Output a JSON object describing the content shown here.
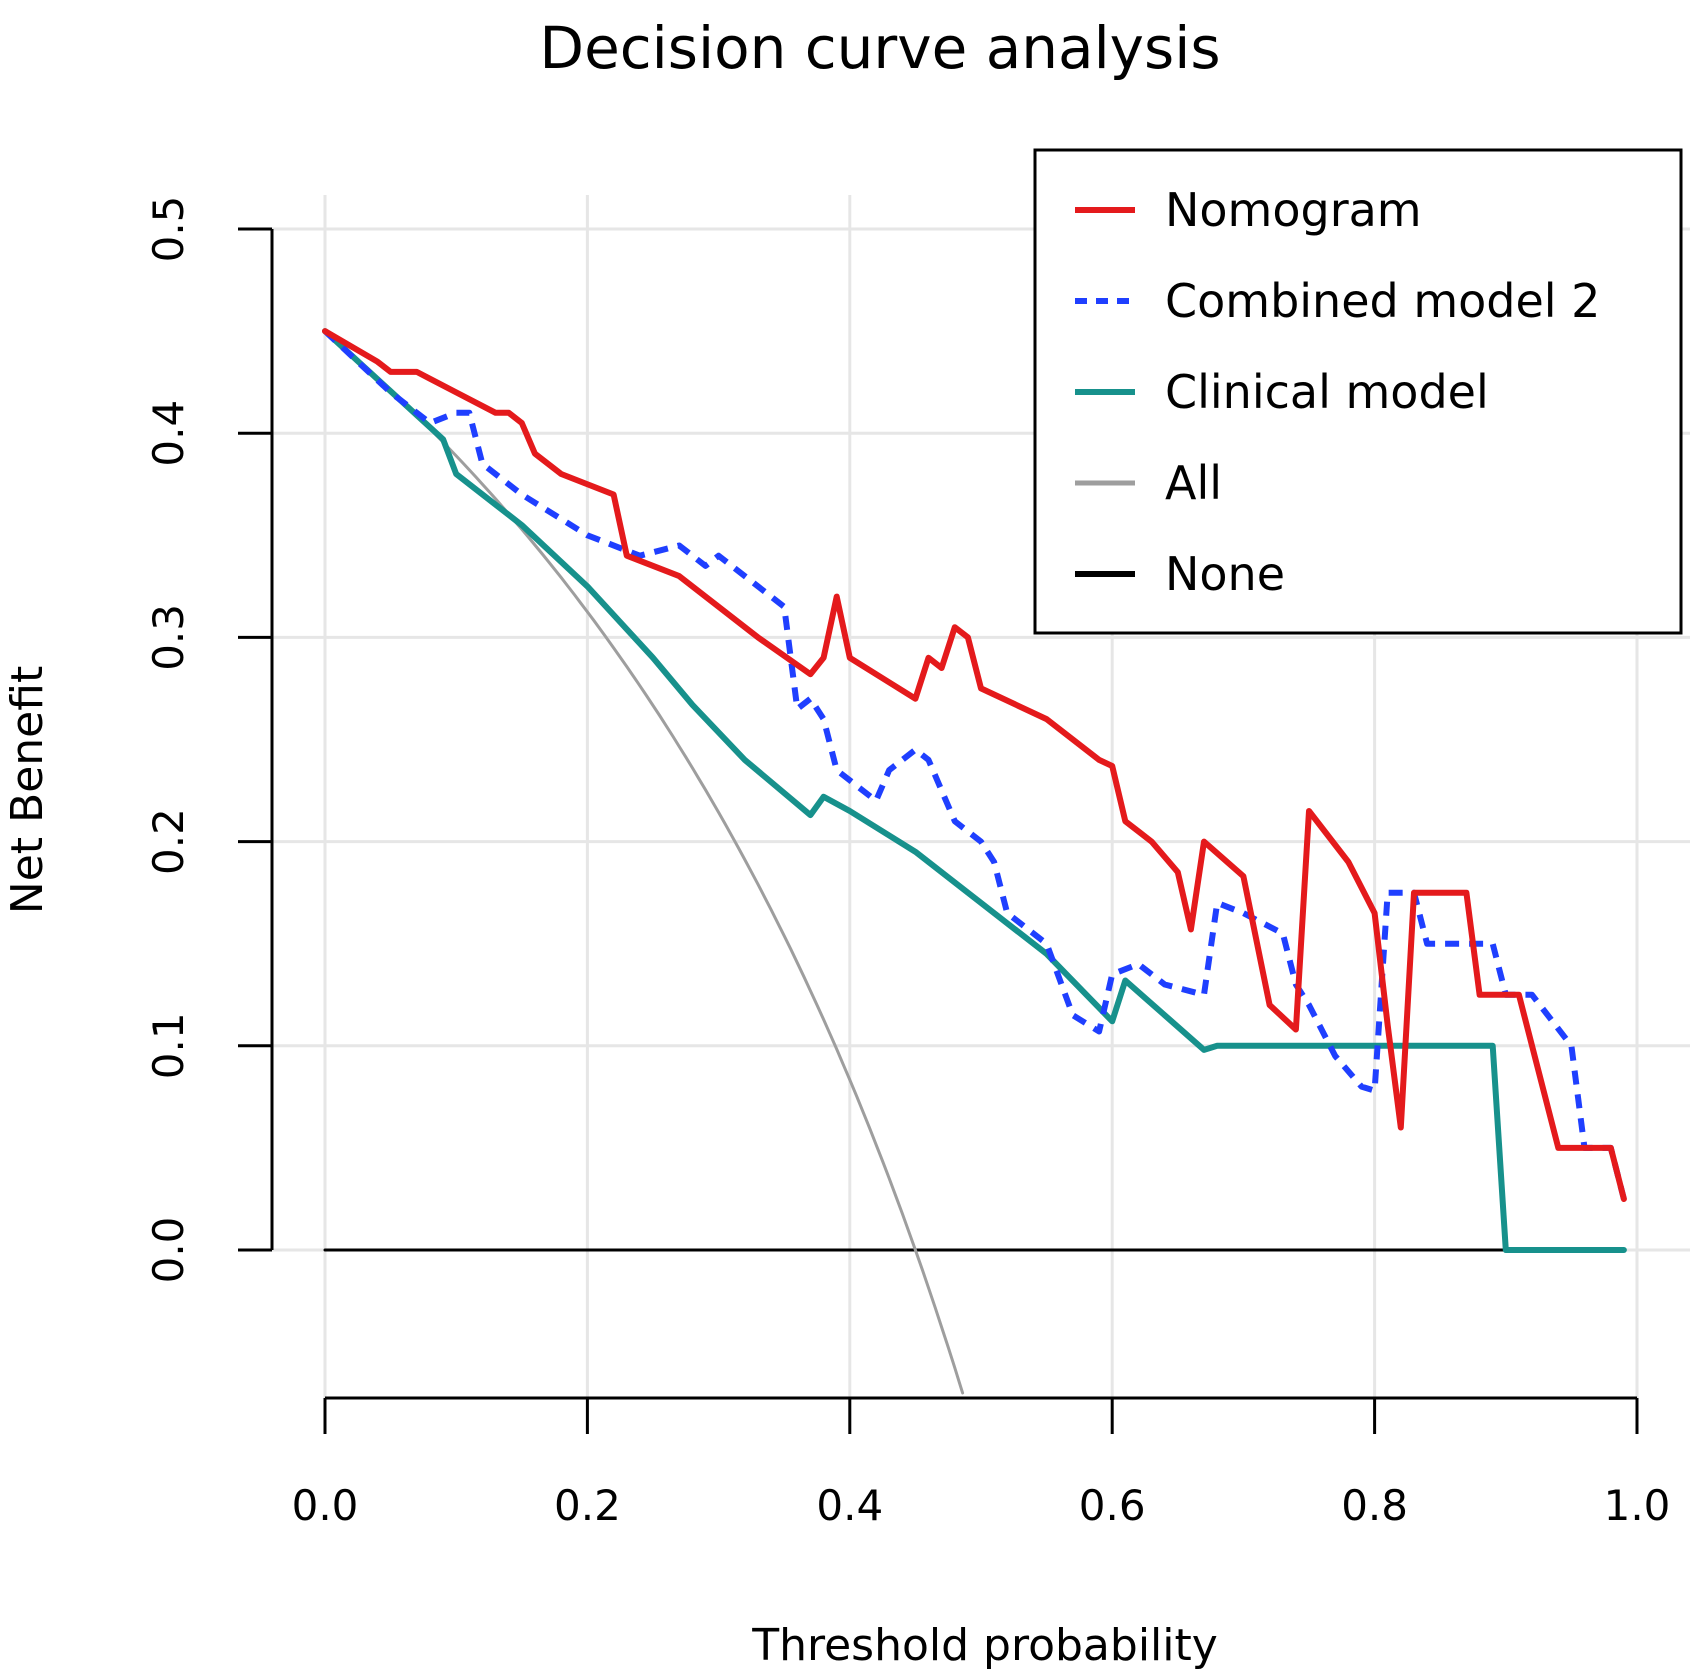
{
  "chart_data": {
    "type": "line",
    "title": "Decision curve analysis",
    "xlabel": "Threshold probability",
    "ylabel": "Net Benefit",
    "xlim": [
      0,
      1
    ],
    "ylim": [
      -0.07,
      0.5
    ],
    "x_ticks": [
      "0.0",
      "0.2",
      "0.4",
      "0.6",
      "0.8",
      "1.0"
    ],
    "y_ticks": [
      "0.0",
      "0.1",
      "0.2",
      "0.3",
      "0.4",
      "0.5"
    ],
    "grid": true,
    "legend_position": "top-right",
    "series": [
      {
        "name": "Nomogram",
        "color": "#e41a1c",
        "style": "solid",
        "points": [
          [
            0.0,
            0.45
          ],
          [
            0.04,
            0.435
          ],
          [
            0.05,
            0.43
          ],
          [
            0.07,
            0.43
          ],
          [
            0.1,
            0.42
          ],
          [
            0.13,
            0.41
          ],
          [
            0.14,
            0.41
          ],
          [
            0.15,
            0.405
          ],
          [
            0.16,
            0.39
          ],
          [
            0.18,
            0.38
          ],
          [
            0.22,
            0.37
          ],
          [
            0.23,
            0.34
          ],
          [
            0.27,
            0.33
          ],
          [
            0.3,
            0.315
          ],
          [
            0.33,
            0.3
          ],
          [
            0.37,
            0.282
          ],
          [
            0.38,
            0.29
          ],
          [
            0.39,
            0.32
          ],
          [
            0.4,
            0.29
          ],
          [
            0.45,
            0.27
          ],
          [
            0.46,
            0.29
          ],
          [
            0.47,
            0.285
          ],
          [
            0.48,
            0.305
          ],
          [
            0.49,
            0.3
          ],
          [
            0.5,
            0.275
          ],
          [
            0.55,
            0.26
          ],
          [
            0.59,
            0.24
          ],
          [
            0.6,
            0.237
          ],
          [
            0.61,
            0.21
          ],
          [
            0.63,
            0.2
          ],
          [
            0.65,
            0.185
          ],
          [
            0.66,
            0.157
          ],
          [
            0.67,
            0.2
          ],
          [
            0.7,
            0.183
          ],
          [
            0.72,
            0.12
          ],
          [
            0.74,
            0.108
          ],
          [
            0.75,
            0.215
          ],
          [
            0.78,
            0.19
          ],
          [
            0.8,
            0.165
          ],
          [
            0.81,
            0.11
          ],
          [
            0.82,
            0.06
          ],
          [
            0.83,
            0.175
          ],
          [
            0.85,
            0.175
          ],
          [
            0.87,
            0.175
          ],
          [
            0.88,
            0.125
          ],
          [
            0.91,
            0.125
          ],
          [
            0.94,
            0.05
          ],
          [
            0.98,
            0.05
          ],
          [
            0.99,
            0.025
          ]
        ]
      },
      {
        "name": "Combined model 2",
        "color": "#1f3fff",
        "style": "dashed",
        "points": [
          [
            0.0,
            0.45
          ],
          [
            0.05,
            0.42
          ],
          [
            0.08,
            0.405
          ],
          [
            0.1,
            0.41
          ],
          [
            0.11,
            0.41
          ],
          [
            0.12,
            0.385
          ],
          [
            0.15,
            0.37
          ],
          [
            0.2,
            0.35
          ],
          [
            0.24,
            0.34
          ],
          [
            0.27,
            0.345
          ],
          [
            0.29,
            0.335
          ],
          [
            0.3,
            0.34
          ],
          [
            0.33,
            0.325
          ],
          [
            0.35,
            0.315
          ],
          [
            0.36,
            0.265
          ],
          [
            0.37,
            0.27
          ],
          [
            0.38,
            0.26
          ],
          [
            0.39,
            0.235
          ],
          [
            0.42,
            0.22
          ],
          [
            0.43,
            0.235
          ],
          [
            0.45,
            0.245
          ],
          [
            0.46,
            0.24
          ],
          [
            0.48,
            0.21
          ],
          [
            0.5,
            0.2
          ],
          [
            0.51,
            0.19
          ],
          [
            0.52,
            0.165
          ],
          [
            0.55,
            0.15
          ],
          [
            0.57,
            0.115
          ],
          [
            0.59,
            0.107
          ],
          [
            0.6,
            0.135
          ],
          [
            0.62,
            0.14
          ],
          [
            0.64,
            0.13
          ],
          [
            0.67,
            0.125
          ],
          [
            0.68,
            0.17
          ],
          [
            0.7,
            0.165
          ],
          [
            0.73,
            0.155
          ],
          [
            0.74,
            0.13
          ],
          [
            0.75,
            0.12
          ],
          [
            0.77,
            0.095
          ],
          [
            0.79,
            0.08
          ],
          [
            0.8,
            0.078
          ],
          [
            0.81,
            0.175
          ],
          [
            0.83,
            0.175
          ],
          [
            0.84,
            0.15
          ],
          [
            0.86,
            0.15
          ],
          [
            0.89,
            0.15
          ],
          [
            0.9,
            0.125
          ],
          [
            0.92,
            0.125
          ],
          [
            0.95,
            0.1
          ],
          [
            0.96,
            0.05
          ],
          [
            0.98,
            0.05
          ],
          [
            0.99,
            0.025
          ]
        ]
      },
      {
        "name": "Clinical model",
        "color": "#17918c",
        "style": "solid",
        "points": [
          [
            0.0,
            0.45
          ],
          [
            0.09,
            0.397
          ],
          [
            0.1,
            0.38
          ],
          [
            0.15,
            0.355
          ],
          [
            0.2,
            0.325
          ],
          [
            0.25,
            0.29
          ],
          [
            0.28,
            0.267
          ],
          [
            0.32,
            0.24
          ],
          [
            0.37,
            0.213
          ],
          [
            0.38,
            0.222
          ],
          [
            0.4,
            0.215
          ],
          [
            0.45,
            0.195
          ],
          [
            0.5,
            0.17
          ],
          [
            0.55,
            0.145
          ],
          [
            0.6,
            0.112
          ],
          [
            0.61,
            0.132
          ],
          [
            0.64,
            0.115
          ],
          [
            0.67,
            0.098
          ],
          [
            0.68,
            0.1
          ],
          [
            0.75,
            0.1
          ],
          [
            0.89,
            0.1
          ],
          [
            0.9,
            0.0
          ],
          [
            0.99,
            0.0
          ]
        ]
      },
      {
        "name": "All",
        "color": "#9e9e9e",
        "style": "solid",
        "prevalence": 0.45,
        "points": [
          [
            0.0,
            0.45
          ],
          [
            0.05,
            0.421
          ],
          [
            0.1,
            0.389
          ],
          [
            0.15,
            0.353
          ],
          [
            0.2,
            0.313
          ],
          [
            0.25,
            0.267
          ],
          [
            0.3,
            0.214
          ],
          [
            0.35,
            0.154
          ],
          [
            0.4,
            0.083
          ],
          [
            0.45,
            0.0
          ],
          [
            0.487,
            -0.072
          ]
        ]
      },
      {
        "name": "None",
        "color": "#000000",
        "style": "solid",
        "points": [
          [
            0.0,
            0.0
          ],
          [
            0.99,
            0.0
          ]
        ]
      }
    ]
  }
}
